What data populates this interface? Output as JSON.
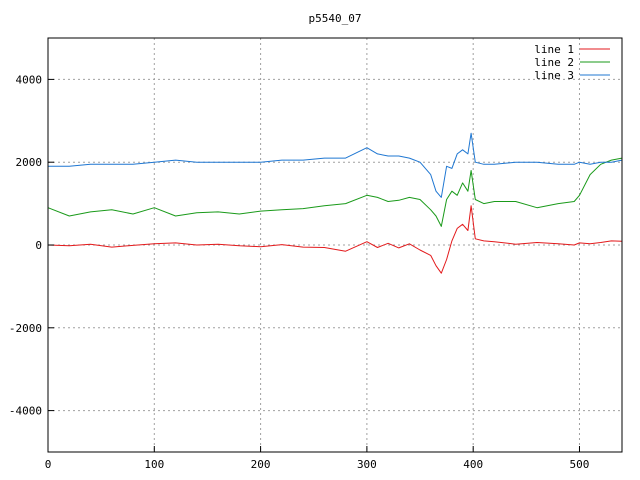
{
  "chart_data": {
    "type": "line",
    "title": "p5540_07",
    "xlabel": "",
    "ylabel": "",
    "xlim": [
      0,
      540
    ],
    "ylim": [
      -5000,
      5000
    ],
    "xticks": [
      0,
      100,
      200,
      300,
      400,
      500
    ],
    "yticks": [
      -4000,
      -2000,
      0,
      2000,
      4000
    ],
    "grid": true,
    "legend_position": "top-right",
    "x": [
      0,
      20,
      40,
      60,
      80,
      100,
      120,
      140,
      160,
      180,
      200,
      220,
      240,
      260,
      280,
      300,
      310,
      320,
      330,
      340,
      350,
      360,
      365,
      370,
      375,
      380,
      385,
      390,
      395,
      398,
      402,
      410,
      420,
      440,
      460,
      480,
      495,
      500,
      510,
      520,
      530,
      540
    ],
    "series": [
      {
        "name": "line 1",
        "color": "#e31a1c",
        "values": [
          0,
          -20,
          20,
          -50,
          -10,
          30,
          50,
          0,
          20,
          -20,
          -40,
          10,
          -50,
          -60,
          -150,
          80,
          -60,
          40,
          -70,
          30,
          -120,
          -250,
          -500,
          -680,
          -350,
          100,
          400,
          500,
          350,
          950,
          150,
          100,
          80,
          20,
          60,
          30,
          0,
          50,
          30,
          60,
          100,
          90
        ]
      },
      {
        "name": "line 2",
        "color": "#1a9a1a",
        "values": [
          900,
          700,
          800,
          850,
          750,
          900,
          700,
          780,
          800,
          750,
          820,
          850,
          880,
          950,
          1000,
          1200,
          1150,
          1050,
          1080,
          1150,
          1100,
          850,
          700,
          450,
          1100,
          1300,
          1200,
          1500,
          1300,
          1800,
          1100,
          1000,
          1050,
          1050,
          900,
          1000,
          1050,
          1200,
          1700,
          1950,
          2050,
          2100
        ]
      },
      {
        "name": "line 3",
        "color": "#1f77d2",
        "values": [
          1900,
          1900,
          1950,
          1950,
          1950,
          2000,
          2050,
          2000,
          2000,
          2000,
          2000,
          2050,
          2050,
          2100,
          2100,
          2350,
          2200,
          2150,
          2150,
          2100,
          2000,
          1700,
          1300,
          1150,
          1900,
          1850,
          2200,
          2300,
          2200,
          2700,
          2000,
          1950,
          1950,
          2000,
          2000,
          1950,
          1950,
          2000,
          1950,
          2000,
          2000,
          2050
        ]
      }
    ]
  }
}
